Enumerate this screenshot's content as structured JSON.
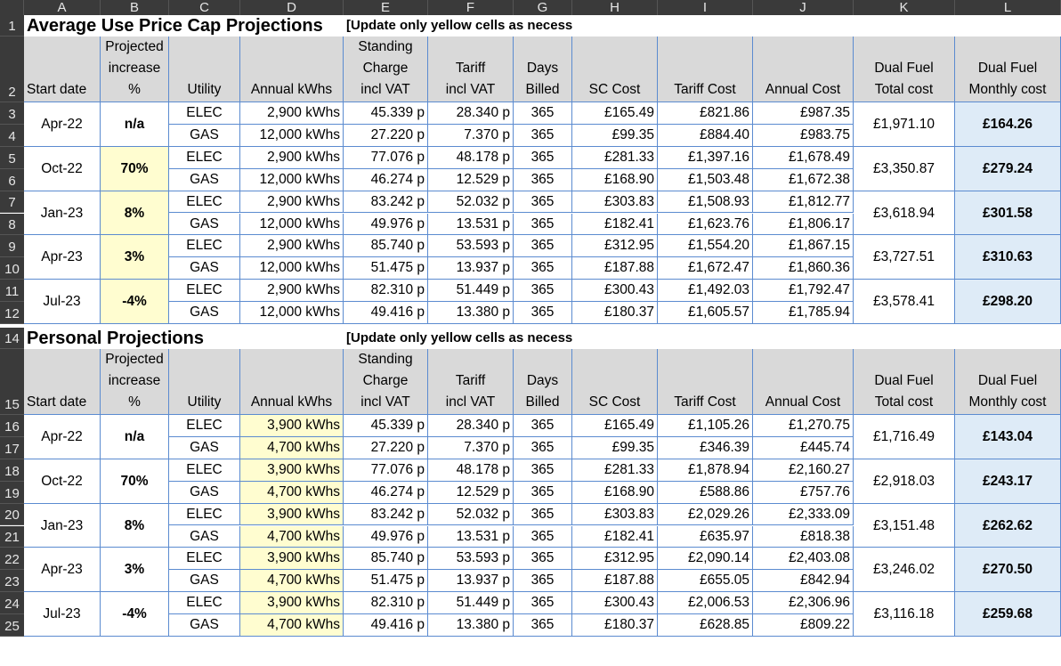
{
  "columns": [
    "A",
    "B",
    "C",
    "D",
    "E",
    "F",
    "G",
    "H",
    "I",
    "J",
    "K",
    "L"
  ],
  "sections": [
    {
      "title": "Average Use Price Cap Projections",
      "note": "[Update only yellow cells as necessary]",
      "title_row": "1",
      "header_row": "2",
      "headers": {
        "start_date": "Start date",
        "increase": [
          "Projected",
          "increase",
          "%"
        ],
        "utility": "Utility",
        "annual_kwh": "Annual kWhs",
        "standing": [
          "Standing",
          "Charge",
          "incl VAT"
        ],
        "tariff": [
          "Tariff",
          "incl VAT"
        ],
        "days": [
          "Days",
          "Billed"
        ],
        "sc_cost": "SC Cost",
        "tariff_cost": "Tariff Cost",
        "annual_cost": "Annual Cost",
        "dual_total": [
          "Dual Fuel",
          "Total cost"
        ],
        "dual_monthly": [
          "Dual Fuel",
          "Monthly cost"
        ]
      },
      "kwh_editable": false,
      "increase_editable": true,
      "groups": [
        {
          "rows": [
            "3",
            "4"
          ],
          "date": "Apr-22",
          "increase": "n/a",
          "total": "£1,971.10",
          "monthly": "£164.26",
          "lines": [
            {
              "utility": "ELEC",
              "kwh": "2,900 kWhs",
              "standing": "45.339 p",
              "tariff": "28.340 p",
              "days": "365",
              "sc": "£165.49",
              "tc": "£821.86",
              "ac": "£987.35"
            },
            {
              "utility": "GAS",
              "kwh": "12,000 kWhs",
              "standing": "27.220 p",
              "tariff": "7.370 p",
              "days": "365",
              "sc": "£99.35",
              "tc": "£884.40",
              "ac": "£983.75"
            }
          ]
        },
        {
          "rows": [
            "5",
            "6"
          ],
          "date": "Oct-22",
          "increase": "70%",
          "total": "£3,350.87",
          "monthly": "£279.24",
          "lines": [
            {
              "utility": "ELEC",
              "kwh": "2,900 kWhs",
              "standing": "77.076 p",
              "tariff": "48.178 p",
              "days": "365",
              "sc": "£281.33",
              "tc": "£1,397.16",
              "ac": "£1,678.49"
            },
            {
              "utility": "GAS",
              "kwh": "12,000 kWhs",
              "standing": "46.274 p",
              "tariff": "12.529 p",
              "days": "365",
              "sc": "£168.90",
              "tc": "£1,503.48",
              "ac": "£1,672.38"
            }
          ]
        },
        {
          "rows": [
            "7",
            "8"
          ],
          "date": "Jan-23",
          "increase": "8%",
          "total": "£3,618.94",
          "monthly": "£301.58",
          "lines": [
            {
              "utility": "ELEC",
              "kwh": "2,900 kWhs",
              "standing": "83.242 p",
              "tariff": "52.032 p",
              "days": "365",
              "sc": "£303.83",
              "tc": "£1,508.93",
              "ac": "£1,812.77"
            },
            {
              "utility": "GAS",
              "kwh": "12,000 kWhs",
              "standing": "49.976 p",
              "tariff": "13.531 p",
              "days": "365",
              "sc": "£182.41",
              "tc": "£1,623.76",
              "ac": "£1,806.17"
            }
          ]
        },
        {
          "rows": [
            "9",
            "10"
          ],
          "date": "Apr-23",
          "increase": "3%",
          "total": "£3,727.51",
          "monthly": "£310.63",
          "lines": [
            {
              "utility": "ELEC",
              "kwh": "2,900 kWhs",
              "standing": "85.740 p",
              "tariff": "53.593 p",
              "days": "365",
              "sc": "£312.95",
              "tc": "£1,554.20",
              "ac": "£1,867.15"
            },
            {
              "utility": "GAS",
              "kwh": "12,000 kWhs",
              "standing": "51.475 p",
              "tariff": "13.937 p",
              "days": "365",
              "sc": "£187.88",
              "tc": "£1,672.47",
              "ac": "£1,860.36"
            }
          ]
        },
        {
          "rows": [
            "11",
            "12"
          ],
          "date": "Jul-23",
          "increase": "-4%",
          "total": "£3,578.41",
          "monthly": "£298.20",
          "lines": [
            {
              "utility": "ELEC",
              "kwh": "2,900 kWhs",
              "standing": "82.310 p",
              "tariff": "51.449 p",
              "days": "365",
              "sc": "£300.43",
              "tc": "£1,492.03",
              "ac": "£1,792.47"
            },
            {
              "utility": "GAS",
              "kwh": "12,000 kWhs",
              "standing": "49.416 p",
              "tariff": "13.380 p",
              "days": "365",
              "sc": "£180.37",
              "tc": "£1,605.57",
              "ac": "£1,785.94"
            }
          ]
        }
      ]
    },
    {
      "title": "Personal Projections",
      "note": "[Update only yellow cells as necessary]",
      "title_row": "14",
      "header_row": "15",
      "headers": {
        "start_date": "Start date",
        "increase": [
          "Projected",
          "increase",
          "%"
        ],
        "utility": "Utility",
        "annual_kwh": "Annual kWhs",
        "standing": [
          "Standing",
          "Charge",
          "incl VAT"
        ],
        "tariff": [
          "Tariff",
          "incl VAT"
        ],
        "days": [
          "Days",
          "Billed"
        ],
        "sc_cost": "SC Cost",
        "tariff_cost": "Tariff Cost",
        "annual_cost": "Annual Cost",
        "dual_total": [
          "Dual Fuel",
          "Total cost"
        ],
        "dual_monthly": [
          "Dual Fuel",
          "Monthly cost"
        ]
      },
      "kwh_editable": true,
      "increase_editable": false,
      "groups": [
        {
          "rows": [
            "16",
            "17"
          ],
          "date": "Apr-22",
          "increase": "n/a",
          "total": "£1,716.49",
          "monthly": "£143.04",
          "lines": [
            {
              "utility": "ELEC",
              "kwh": "3,900 kWhs",
              "standing": "45.339 p",
              "tariff": "28.340 p",
              "days": "365",
              "sc": "£165.49",
              "tc": "£1,105.26",
              "ac": "£1,270.75"
            },
            {
              "utility": "GAS",
              "kwh": "4,700 kWhs",
              "standing": "27.220 p",
              "tariff": "7.370 p",
              "days": "365",
              "sc": "£99.35",
              "tc": "£346.39",
              "ac": "£445.74"
            }
          ]
        },
        {
          "rows": [
            "18",
            "19"
          ],
          "date": "Oct-22",
          "increase": "70%",
          "total": "£2,918.03",
          "monthly": "£243.17",
          "lines": [
            {
              "utility": "ELEC",
              "kwh": "3,900 kWhs",
              "standing": "77.076 p",
              "tariff": "48.178 p",
              "days": "365",
              "sc": "£281.33",
              "tc": "£1,878.94",
              "ac": "£2,160.27"
            },
            {
              "utility": "GAS",
              "kwh": "4,700 kWhs",
              "standing": "46.274 p",
              "tariff": "12.529 p",
              "days": "365",
              "sc": "£168.90",
              "tc": "£588.86",
              "ac": "£757.76"
            }
          ]
        },
        {
          "rows": [
            "20",
            "21"
          ],
          "date": "Jan-23",
          "increase": "8%",
          "total": "£3,151.48",
          "monthly": "£262.62",
          "lines": [
            {
              "utility": "ELEC",
              "kwh": "3,900 kWhs",
              "standing": "83.242 p",
              "tariff": "52.032 p",
              "days": "365",
              "sc": "£303.83",
              "tc": "£2,029.26",
              "ac": "£2,333.09"
            },
            {
              "utility": "GAS",
              "kwh": "4,700 kWhs",
              "standing": "49.976 p",
              "tariff": "13.531 p",
              "days": "365",
              "sc": "£182.41",
              "tc": "£635.97",
              "ac": "£818.38"
            }
          ]
        },
        {
          "rows": [
            "22",
            "23"
          ],
          "date": "Apr-23",
          "increase": "3%",
          "total": "£3,246.02",
          "monthly": "£270.50",
          "lines": [
            {
              "utility": "ELEC",
              "kwh": "3,900 kWhs",
              "standing": "85.740 p",
              "tariff": "53.593 p",
              "days": "365",
              "sc": "£312.95",
              "tc": "£2,090.14",
              "ac": "£2,403.08"
            },
            {
              "utility": "GAS",
              "kwh": "4,700 kWhs",
              "standing": "51.475 p",
              "tariff": "13.937 p",
              "days": "365",
              "sc": "£187.88",
              "tc": "£655.05",
              "ac": "£842.94"
            }
          ]
        },
        {
          "rows": [
            "24",
            "25"
          ],
          "date": "Jul-23",
          "increase": "-4%",
          "total": "£3,116.18",
          "monthly": "£259.68",
          "lines": [
            {
              "utility": "ELEC",
              "kwh": "3,900 kWhs",
              "standing": "82.310 p",
              "tariff": "51.449 p",
              "days": "365",
              "sc": "£300.43",
              "tc": "£2,006.53",
              "ac": "£2,306.96"
            },
            {
              "utility": "GAS",
              "kwh": "4,700 kWhs",
              "standing": "49.416 p",
              "tariff": "13.380 p",
              "days": "365",
              "sc": "£180.37",
              "tc": "£628.85",
              "ac": "£809.22"
            }
          ]
        }
      ]
    }
  ],
  "colors": {
    "yellow": "#fffdd0",
    "blue": "#deebf7",
    "header_gray": "#d9d9d9",
    "frame": "#3a3a3a",
    "border_blue": "#5b8bd0"
  }
}
